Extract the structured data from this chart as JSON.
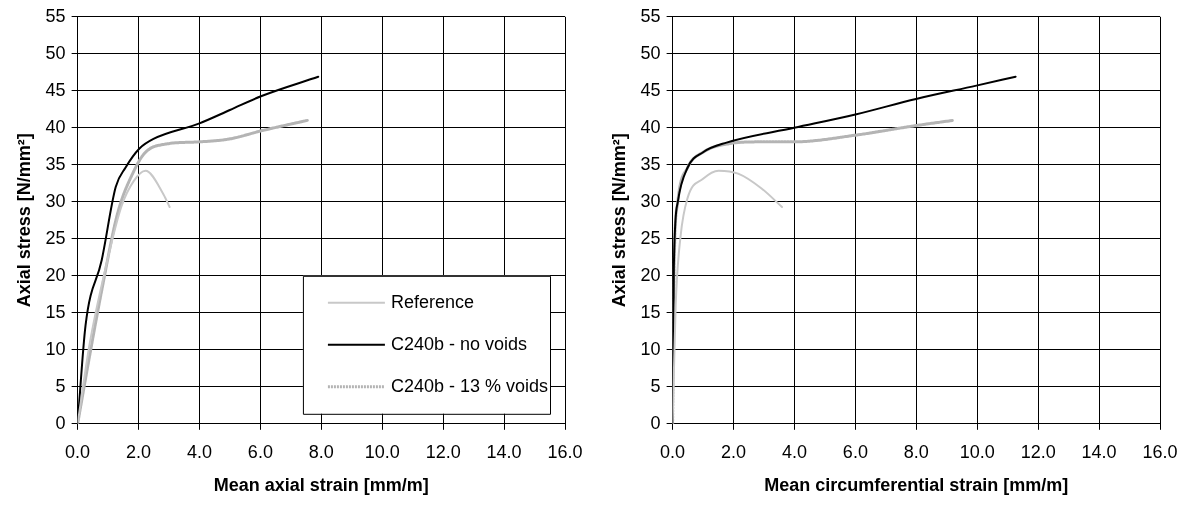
{
  "chart_data": [
    {
      "type": "line",
      "xlabel": "Mean axial strain [mm/m]",
      "ylabel": "Axial stress [N/mm²]",
      "xlim": [
        0,
        16
      ],
      "ylim": [
        0,
        55
      ],
      "xticks": [
        {
          "value": 0,
          "label": "0.0"
        },
        {
          "value": 2,
          "label": "2.0"
        },
        {
          "value": 4,
          "label": "4.0"
        },
        {
          "value": 6,
          "label": "6.0"
        },
        {
          "value": 8,
          "label": "8.0"
        },
        {
          "value": 10,
          "label": "10.0"
        },
        {
          "value": 12,
          "label": "12.0"
        },
        {
          "value": 14,
          "label": "14.0"
        },
        {
          "value": 16,
          "label": "16.0"
        }
      ],
      "yticks": [
        0,
        5,
        10,
        15,
        20,
        25,
        30,
        35,
        40,
        45,
        50,
        55
      ],
      "grid": true,
      "legend": "bottom right",
      "marker": "none",
      "series": [
        {
          "name": "Reference",
          "color": "#c8c8c8",
          "line_style": "solid",
          "x": [
            0,
            0.39,
            0.92,
            1.44,
            1.84,
            2.23,
            2.82,
            3.02
          ],
          "values": [
            0,
            10.7,
            21.1,
            29.4,
            32.8,
            34.2,
            31,
            29.3
          ]
        },
        {
          "name": "C240b - no voids",
          "color": "#000000",
          "line_style": "solid",
          "x": [
            0,
            0.26,
            0.79,
            1.25,
            1.57,
            2.03,
            2.49,
            4.0,
            5.0,
            6.04,
            7.9
          ],
          "values": [
            0,
            13.3,
            22.1,
            32,
            34.6,
            37.2,
            38.5,
            40.6,
            42.4,
            44.3,
            46.9
          ]
        },
        {
          "name": "C240b - 13 % voids",
          "color": "#b4b4b4",
          "line_style": "dotted",
          "x": [
            0,
            0.39,
            0.79,
            1.31,
            1.84,
            2.23,
            2.89,
            4.0,
            5.0,
            6.04,
            7.54
          ],
          "values": [
            0,
            9.1,
            18,
            28.4,
            34.1,
            36.7,
            37.8,
            38.1,
            38.5,
            39.6,
            41.0
          ]
        }
      ]
    },
    {
      "type": "line",
      "xlabel": "Mean circumferential strain [mm/m]",
      "ylabel": "Axial stress [N/mm²]",
      "xlim": [
        0,
        16
      ],
      "ylim": [
        0,
        55
      ],
      "xticks": [
        {
          "value": 0,
          "label": "0.0"
        },
        {
          "value": 2,
          "label": "2.0"
        },
        {
          "value": 4,
          "label": "4.0"
        },
        {
          "value": 6,
          "label": "6.0"
        },
        {
          "value": 8,
          "label": "8.0"
        },
        {
          "value": 10,
          "label": "10.0"
        },
        {
          "value": 12,
          "label": "12.0"
        },
        {
          "value": 14,
          "label": "14.0"
        },
        {
          "value": 16,
          "label": "16.0"
        }
      ],
      "yticks": [
        0,
        5,
        10,
        15,
        20,
        25,
        30,
        35,
        40,
        45,
        50,
        55
      ],
      "grid": true,
      "marker": "none",
      "series": [
        {
          "color": "#c8c8c8",
          "line_style": "solid",
          "x": [
            0,
            0.1,
            0.26,
            0.49,
            1.0,
            1.51,
            2.15,
            2.92,
            3.59
          ],
          "values": [
            0,
            16,
            25.3,
            30.5,
            33.1,
            34.2,
            33.8,
            31.8,
            29.3
          ]
        },
        {
          "color": "#000000",
          "line_style": "solid",
          "x": [
            0,
            0.04,
            0.17,
            0.49,
            1.0,
            1.77,
            3.99,
            6.0,
            7.99,
            9.97,
            11.26
          ],
          "values": [
            0,
            21.2,
            30,
            34.6,
            36.7,
            38,
            40,
            41.8,
            43.9,
            45.7,
            46.9
          ]
        },
        {
          "color": "#b4b4b4",
          "line_style": "dotted",
          "x": [
            0,
            0.05,
            0.17,
            0.49,
            1.0,
            1.77,
            2.92,
            3.99,
            6.0,
            7.99,
            9.2
          ],
          "values": [
            0,
            21.2,
            30,
            34.6,
            36.7,
            37.8,
            38.1,
            38.1,
            39,
            40.3,
            41
          ]
        }
      ]
    }
  ]
}
